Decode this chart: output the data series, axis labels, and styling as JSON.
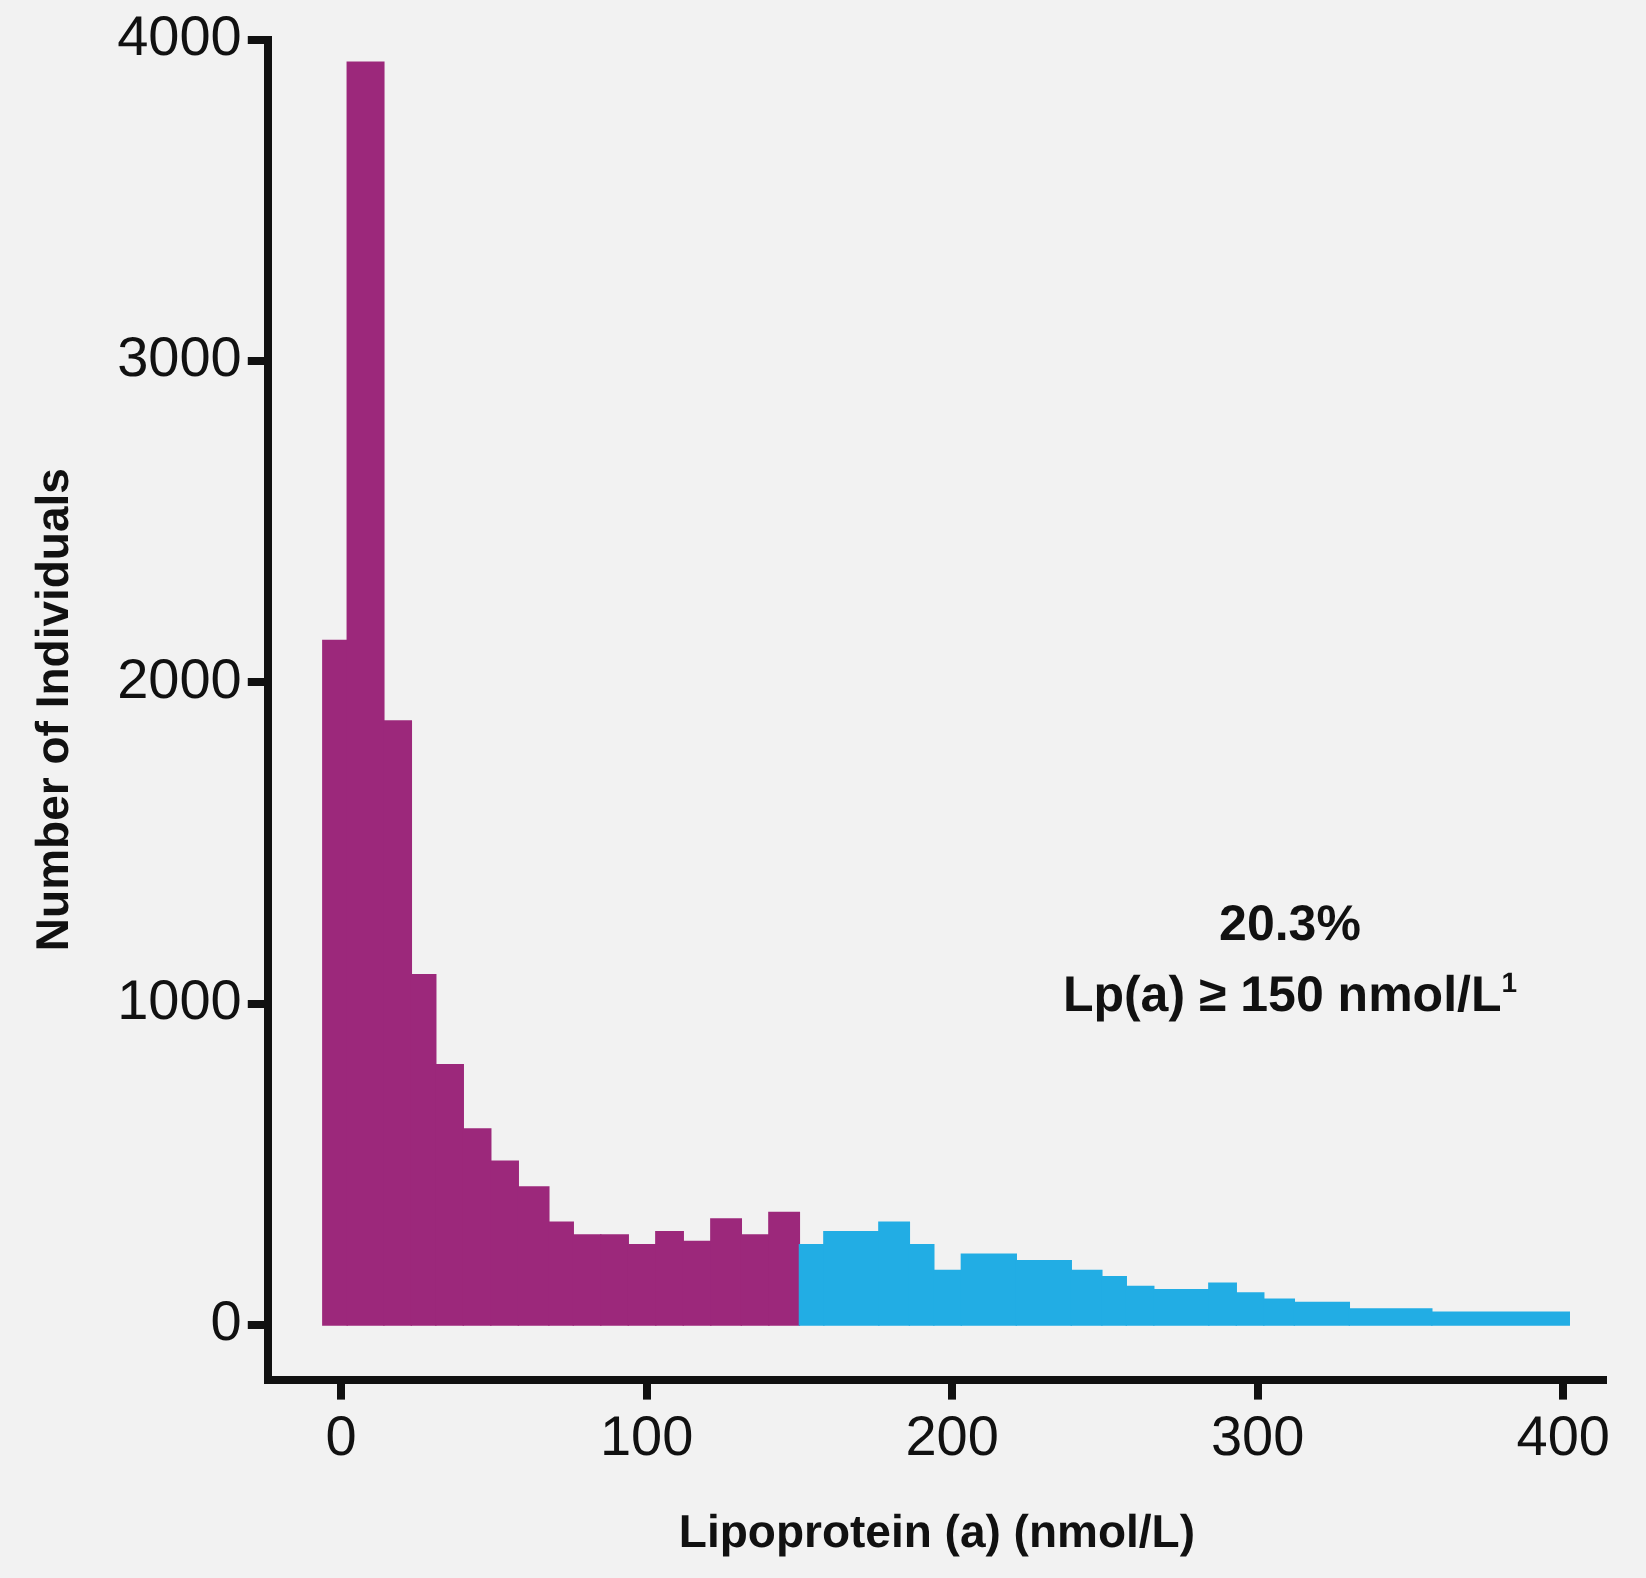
{
  "chart_data": {
    "type": "histogram",
    "xlabel": "Lipoprotein (a) (nmol/L)",
    "ylabel": "Number of Individuals",
    "bins": [
      -6,
      2,
      14,
      23,
      31,
      40,
      49,
      58,
      68,
      76,
      85,
      94,
      103,
      112,
      121,
      131,
      140,
      150,
      158,
      176,
      186,
      194,
      203,
      221,
      239,
      249,
      257,
      266,
      284,
      293,
      302,
      312,
      330,
      357,
      402
    ],
    "values": [
      2130,
      3930,
      1880,
      1090,
      810,
      610,
      510,
      430,
      320,
      280,
      280,
      250,
      290,
      260,
      330,
      280,
      350,
      250,
      290,
      320,
      250,
      170,
      220,
      200,
      170,
      150,
      120,
      110,
      130,
      100,
      80,
      70,
      50,
      40
    ],
    "colors": [
      "#9c287b",
      "#9c287b",
      "#9c287b",
      "#9c287b",
      "#9c287b",
      "#9c287b",
      "#9c287b",
      "#9c287b",
      "#9c287b",
      "#9c287b",
      "#9c287b",
      "#9c287b",
      "#9c287b",
      "#9c287b",
      "#9c287b",
      "#9c287b",
      "#9c287b",
      "#22ade4",
      "#22ade4",
      "#22ade4",
      "#22ade4",
      "#22ade4",
      "#22ade4",
      "#22ade4",
      "#22ade4",
      "#22ade4",
      "#22ade4",
      "#22ade4",
      "#22ade4",
      "#22ade4",
      "#22ade4",
      "#22ade4",
      "#22ade4",
      "#22ade4"
    ],
    "xlim": [
      -24,
      414
    ],
    "xticks": [
      0,
      100,
      200,
      300,
      400
    ],
    "ylim": [
      -170,
      4000
    ],
    "yticks": [
      0,
      1000,
      2000,
      3000,
      4000
    ],
    "grid": false,
    "legend": false,
    "annotations": [
      "20.3%",
      "Lp(a) ≥ 150 nmol/L$^{1}$"
    ]
  }
}
